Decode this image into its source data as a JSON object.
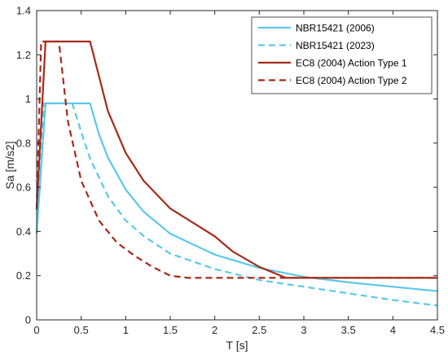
{
  "chart_data": {
    "type": "line",
    "xlabel": "T [s]",
    "ylabel": "Sa [m/s2]",
    "xlim": [
      0,
      4.5
    ],
    "ylim": [
      0,
      1.4
    ],
    "xticks": [
      "0",
      "0.5",
      "1",
      "1.5",
      "2",
      "2.5",
      "3",
      "3.5",
      "4",
      "4.5"
    ],
    "yticks": [
      "0",
      "0.2",
      "0.4",
      "0.6",
      "0.8",
      "1",
      "1.2",
      "1.4"
    ],
    "grid": false,
    "legend_position": "top-right",
    "series": [
      {
        "name": "NBR15421 (2006)",
        "color": "#5bc8e8",
        "style": "solid",
        "x": [
          0,
          0.1,
          0.6,
          0.7,
          0.8,
          1.0,
          1.2,
          1.5,
          2.0,
          2.5,
          3.0,
          3.5,
          4.0,
          4.5
        ],
        "y": [
          0.39,
          0.98,
          0.98,
          0.84,
          0.735,
          0.59,
          0.49,
          0.39,
          0.295,
          0.235,
          0.195,
          0.17,
          0.15,
          0.13
        ]
      },
      {
        "name": "NBR15421 (2023)",
        "color": "#5bc8e8",
        "style": "dashed",
        "x": [
          0,
          0.08,
          0.4,
          0.5,
          0.6,
          0.8,
          1.0,
          1.2,
          1.5,
          2.0,
          2.5,
          3.0,
          3.5,
          4.0,
          4.5
        ],
        "y": [
          0.39,
          0.98,
          0.98,
          0.85,
          0.73,
          0.56,
          0.45,
          0.38,
          0.3,
          0.23,
          0.18,
          0.15,
          0.12,
          0.09,
          0.065
        ]
      },
      {
        "name": "EC8 (2004) Action Type 1",
        "color": "#a52a1a",
        "style": "solid",
        "x": [
          0,
          0.1,
          0.6,
          0.8,
          1.0,
          1.2,
          1.5,
          2.0,
          2.2,
          2.5,
          2.8,
          3.0,
          3.5,
          4.0,
          4.5
        ],
        "y": [
          0.5,
          1.26,
          1.26,
          0.945,
          0.756,
          0.63,
          0.504,
          0.378,
          0.31,
          0.24,
          0.19,
          0.19,
          0.19,
          0.19,
          0.19
        ]
      },
      {
        "name": "EC8 (2004) Action Type 2",
        "color": "#a52a1a",
        "style": "dashed",
        "x": [
          0,
          0.05,
          0.25,
          0.35,
          0.5,
          0.7,
          0.9,
          1.1,
          1.3,
          1.5,
          1.7,
          2.0,
          2.5,
          3.0,
          3.5,
          4.0,
          4.5
        ],
        "y": [
          0.5,
          1.26,
          1.26,
          0.9,
          0.63,
          0.45,
          0.35,
          0.29,
          0.24,
          0.2,
          0.19,
          0.19,
          0.19,
          0.19,
          0.19,
          0.19,
          0.19
        ]
      }
    ]
  }
}
